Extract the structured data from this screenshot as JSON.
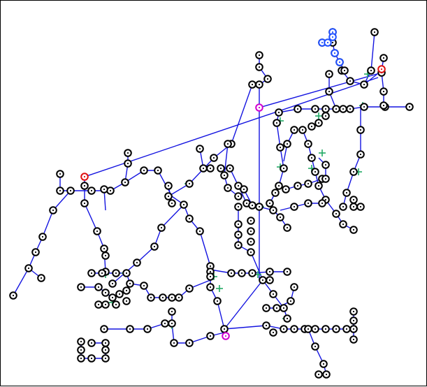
{
  "colors": {
    "edge": "#1414e0",
    "node": "#000000",
    "node_fill": "#ffffff",
    "highlight_magenta": "#d000d0",
    "highlight_red": "#e01010",
    "highlight_blue": "#2050ff",
    "marker_green": "#22aa66"
  },
  "icons": {
    "node": "circle-with-dot",
    "special_node": "colored-ring",
    "junction_marker": "green-cross"
  }
}
